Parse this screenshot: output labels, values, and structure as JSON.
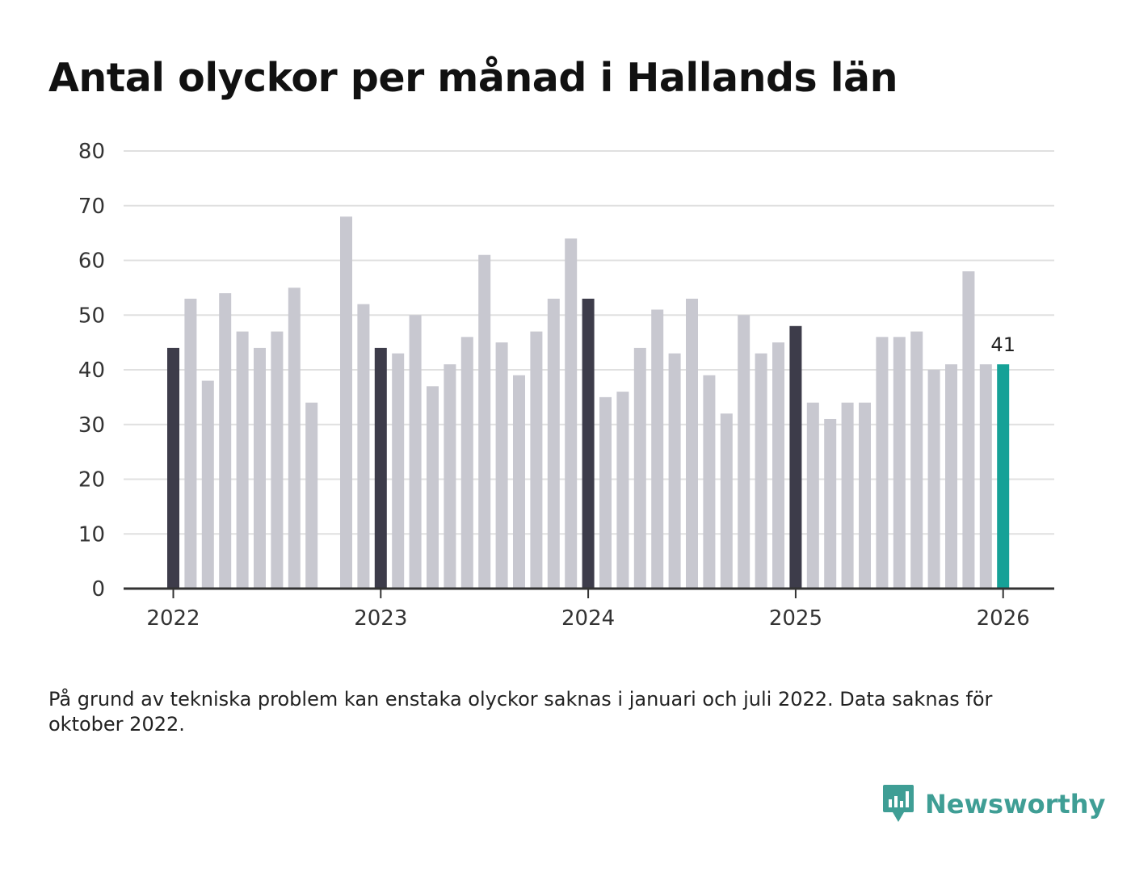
{
  "chart_data": {
    "type": "bar",
    "title": "Antal olyckor per månad i Hallands län",
    "xlabel": "",
    "ylabel": "",
    "ylim": [
      0,
      80
    ],
    "yticks": [
      0,
      10,
      20,
      30,
      40,
      50,
      60,
      70,
      80
    ],
    "xticks": [
      "2022",
      "2023",
      "2024",
      "2025",
      "2026"
    ],
    "grid": true,
    "categories": [
      "2022-01",
      "2022-02",
      "2022-03",
      "2022-04",
      "2022-05",
      "2022-06",
      "2022-07",
      "2022-08",
      "2022-09",
      "2022-10",
      "2022-11",
      "2022-12",
      "2023-01",
      "2023-02",
      "2023-03",
      "2023-04",
      "2023-05",
      "2023-06",
      "2023-07",
      "2023-08",
      "2023-09",
      "2023-10",
      "2023-11",
      "2023-12",
      "2024-01",
      "2024-02",
      "2024-03",
      "2024-04",
      "2024-05",
      "2024-06",
      "2024-07",
      "2024-08",
      "2024-09",
      "2024-10",
      "2024-11",
      "2024-12",
      "2025-01",
      "2025-02",
      "2025-03",
      "2025-04",
      "2025-05",
      "2025-06",
      "2025-07",
      "2025-08",
      "2025-09",
      "2025-10",
      "2025-11",
      "2025-12",
      "2026-01"
    ],
    "values": [
      44,
      53,
      38,
      54,
      47,
      44,
      47,
      55,
      34,
      null,
      68,
      52,
      44,
      43,
      50,
      37,
      41,
      46,
      61,
      45,
      39,
      47,
      53,
      64,
      53,
      35,
      36,
      44,
      51,
      43,
      53,
      39,
      32,
      50,
      43,
      45,
      48,
      34,
      31,
      34,
      34,
      46,
      46,
      47,
      40,
      41,
      58,
      41,
      41
    ],
    "highlight_index": 48,
    "highlight_label": "41",
    "colors": {
      "january": "#3d3c4a",
      "other": "#c8c8d0",
      "latest": "#15a197",
      "grid": "#e0e0e0",
      "axis": "#333333"
    }
  },
  "note": "På grund av tekniska problem kan enstaka olyckor saknas i januari och juli 2022. Data saknas för oktober 2022.",
  "brand": {
    "name": "Newsworthy",
    "color": "#3f9e95",
    "icon": "newsworthy-logo-icon"
  }
}
